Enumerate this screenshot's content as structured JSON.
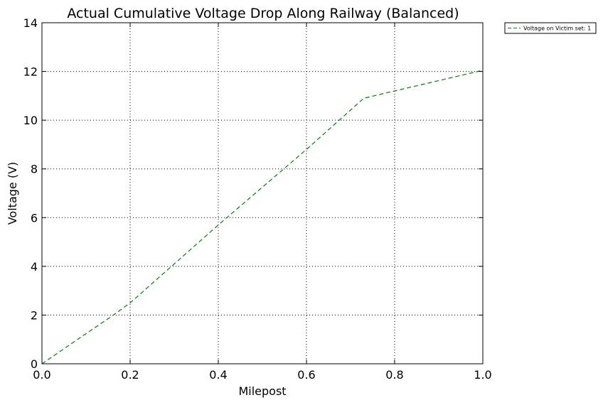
{
  "chart_data": {
    "type": "line",
    "title": "Actual Cumulative Voltage Drop Along Railway (Balanced)",
    "xlabel": "Milepost",
    "ylabel": "Voltage  (V)",
    "xlim": [
      0.0,
      1.0
    ],
    "ylim": [
      0,
      14
    ],
    "xticks": [
      0.0,
      0.2,
      0.4,
      0.6,
      0.8,
      1.0
    ],
    "xtick_labels": [
      "0.0",
      "0.2",
      "0.4",
      "0.6",
      "0.8",
      "1.0"
    ],
    "yticks": [
      0,
      2,
      4,
      6,
      8,
      10,
      12,
      14
    ],
    "ytick_labels": [
      "0",
      "2",
      "4",
      "6",
      "8",
      "10",
      "12",
      "14"
    ],
    "grid": true,
    "legend_position": "outside-top-right",
    "series": [
      {
        "name": "Voltage on Victim set: 1",
        "color": "#008000",
        "line_style": "dashed",
        "x": [
          0.0,
          0.17,
          0.2,
          0.4,
          0.6,
          0.73,
          0.8,
          1.0
        ],
        "y": [
          0.0,
          2.1,
          2.5,
          5.7,
          8.8,
          10.9,
          11.2,
          12.05
        ]
      }
    ]
  }
}
